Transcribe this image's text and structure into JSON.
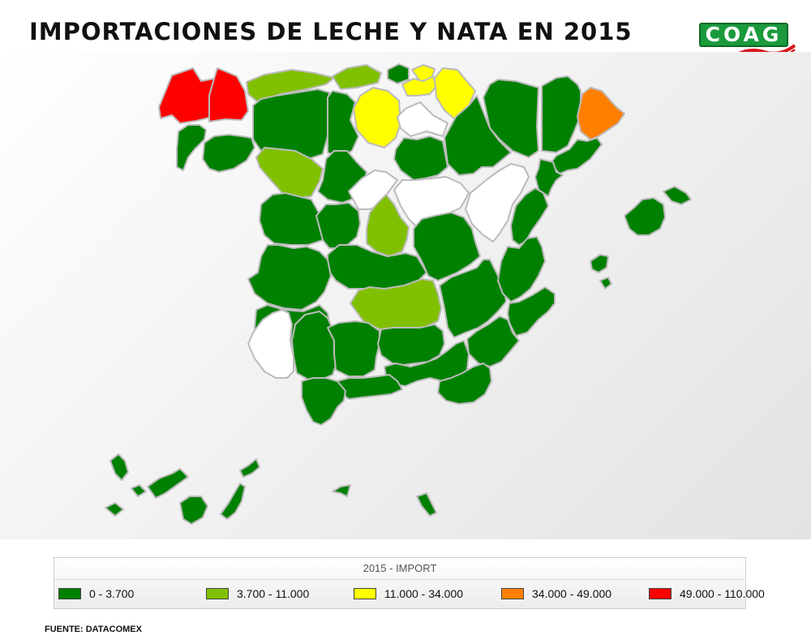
{
  "title": "IMPORTACIONES DE LECHE Y NATA EN 2015",
  "logo": {
    "text": "COAG"
  },
  "legend": {
    "title": "2015 - IMPORT",
    "items": [
      {
        "label": "0 - 3.700",
        "color": "#008000"
      },
      {
        "label": "3.700 - 11.000",
        "color": "#80c000"
      },
      {
        "label": "11.000 - 34.000",
        "color": "#ffff00"
      },
      {
        "label": "34.000 - 49.000",
        "color": "#ff8000"
      },
      {
        "label": "49.000 - 110.000",
        "color": "#ff0000"
      }
    ]
  },
  "source": "FUENTE: DATACOMEX",
  "colors": {
    "no_data": "#ffffff",
    "border": "#bbbbbb"
  },
  "provinces": [
    {
      "name": "A Coruña",
      "class": 4
    },
    {
      "name": "Lugo",
      "class": 4
    },
    {
      "name": "Asturias",
      "class": 1
    },
    {
      "name": "Cantabria",
      "class": 1
    },
    {
      "name": "Bizkaia",
      "class": 0
    },
    {
      "name": "Gipuzkoa",
      "class": 2
    },
    {
      "name": "Araba/Álava",
      "class": 2
    },
    {
      "name": "Navarra",
      "class": 2
    },
    {
      "name": "Burgos",
      "class": 2
    },
    {
      "name": "La Rioja",
      "class": null
    },
    {
      "name": "Huesca",
      "class": 0
    },
    {
      "name": "Lleida",
      "class": 0
    },
    {
      "name": "Girona",
      "class": 3
    },
    {
      "name": "Barcelona",
      "class": 0
    },
    {
      "name": "Tarragona",
      "class": 0
    },
    {
      "name": "Zaragoza",
      "class": 0
    },
    {
      "name": "Soria",
      "class": 0
    },
    {
      "name": "Pontevedra",
      "class": 0
    },
    {
      "name": "Ourense",
      "class": 0
    },
    {
      "name": "León",
      "class": 0
    },
    {
      "name": "Palencia",
      "class": 0
    },
    {
      "name": "Zamora",
      "class": 1
    },
    {
      "name": "Valladolid",
      "class": 0
    },
    {
      "name": "Segovia",
      "class": null
    },
    {
      "name": "Salamanca",
      "class": 0
    },
    {
      "name": "Ávila",
      "class": 0
    },
    {
      "name": "Madrid",
      "class": 1
    },
    {
      "name": "Guadalajara",
      "class": null
    },
    {
      "name": "Teruel",
      "class": null
    },
    {
      "name": "Castellón",
      "class": 0
    },
    {
      "name": "Cuenca",
      "class": 0
    },
    {
      "name": "Toledo",
      "class": 0
    },
    {
      "name": "Cáceres",
      "class": 0
    },
    {
      "name": "Badajoz",
      "class": 0
    },
    {
      "name": "Ciudad Real",
      "class": 1
    },
    {
      "name": "Albacete",
      "class": 0
    },
    {
      "name": "Valencia",
      "class": 0
    },
    {
      "name": "Alicante",
      "class": 0
    },
    {
      "name": "Murcia",
      "class": 0
    },
    {
      "name": "Huelva",
      "class": null
    },
    {
      "name": "Sevilla",
      "class": 0
    },
    {
      "name": "Córdoba",
      "class": 0
    },
    {
      "name": "Jaén",
      "class": 0
    },
    {
      "name": "Granada",
      "class": 0
    },
    {
      "name": "Almería",
      "class": 0
    },
    {
      "name": "Málaga",
      "class": 0
    },
    {
      "name": "Cádiz",
      "class": 0
    },
    {
      "name": "Mallorca",
      "class": 0
    },
    {
      "name": "Menorca",
      "class": 0
    },
    {
      "name": "Ibiza",
      "class": 0
    },
    {
      "name": "Formentera",
      "class": 0
    },
    {
      "name": "La Palma",
      "class": 0
    },
    {
      "name": "El Hierro",
      "class": 0
    },
    {
      "name": "La Gomera",
      "class": 0
    },
    {
      "name": "Tenerife",
      "class": 0
    },
    {
      "name": "Gran Canaria",
      "class": 0
    },
    {
      "name": "Fuerteventura",
      "class": 0
    },
    {
      "name": "Lanzarote",
      "class": 0
    },
    {
      "name": "Ceuta",
      "class": 0
    },
    {
      "name": "Melilla",
      "class": 0
    }
  ]
}
